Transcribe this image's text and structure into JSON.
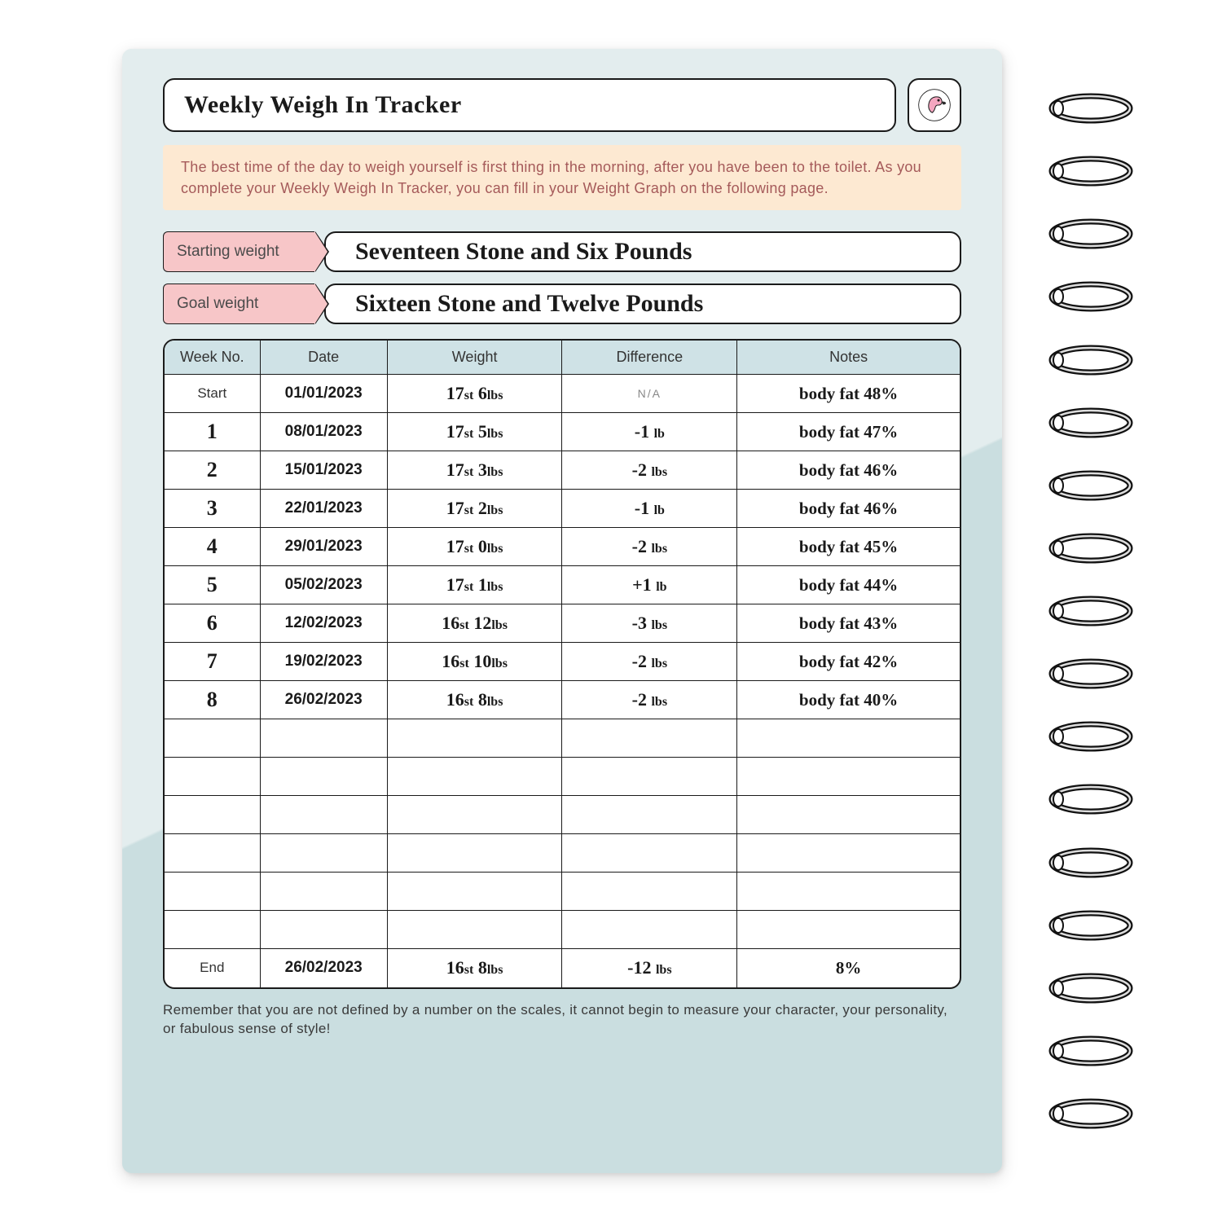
{
  "title": "Weekly Weigh In Tracker",
  "info_text": "The best time of the day to weigh yourself is first thing in the morning, after you have been to the toilet. As you complete your Weekly Weigh In Tracker, you can fill in your Weight Graph on the following page.",
  "starting_weight": {
    "label": "Starting weight",
    "value": "Seventeen Stone and Six Pounds"
  },
  "goal_weight": {
    "label": "Goal weight",
    "value": "Sixteen Stone and Twelve Pounds"
  },
  "columns": [
    "Week No.",
    "Date",
    "Weight",
    "Difference",
    "Notes"
  ],
  "rows": [
    {
      "week": "Start",
      "week_kind": "label",
      "date": "01/01/2023",
      "weight_st": "17",
      "weight_lbs": "6",
      "diff": "N/A",
      "diff_kind": "na",
      "notes": "body fat 48%"
    },
    {
      "week": "1",
      "week_kind": "num",
      "date": "08/01/2023",
      "weight_st": "17",
      "weight_lbs": "5",
      "diff": "-1",
      "diff_unit": "lb",
      "notes": "body fat 47%"
    },
    {
      "week": "2",
      "week_kind": "num",
      "date": "15/01/2023",
      "weight_st": "17",
      "weight_lbs": "3",
      "diff": "-2",
      "diff_unit": "lbs",
      "notes": "body fat 46%"
    },
    {
      "week": "3",
      "week_kind": "num",
      "date": "22/01/2023",
      "weight_st": "17",
      "weight_lbs": "2",
      "diff": "-1",
      "diff_unit": "lb",
      "notes": "body fat 46%"
    },
    {
      "week": "4",
      "week_kind": "num",
      "date": "29/01/2023",
      "weight_st": "17",
      "weight_lbs": "0",
      "diff": "-2",
      "diff_unit": "lbs",
      "notes": "body fat 45%"
    },
    {
      "week": "5",
      "week_kind": "num",
      "date": "05/02/2023",
      "weight_st": "17",
      "weight_lbs": "1",
      "diff": "+1",
      "diff_unit": "lb",
      "notes": "body fat 44%"
    },
    {
      "week": "6",
      "week_kind": "num",
      "date": "12/02/2023",
      "weight_st": "16",
      "weight_lbs": "12",
      "diff": "-3",
      "diff_unit": "lbs",
      "notes": "body fat 43%"
    },
    {
      "week": "7",
      "week_kind": "num",
      "date": "19/02/2023",
      "weight_st": "16",
      "weight_lbs": "10",
      "diff": "-2",
      "diff_unit": "lbs",
      "notes": "body fat 42%"
    },
    {
      "week": "8",
      "week_kind": "num",
      "date": "26/02/2023",
      "weight_st": "16",
      "weight_lbs": "8",
      "diff": "-2",
      "diff_unit": "lbs",
      "notes": "body fat 40%"
    },
    {
      "blank": true
    },
    {
      "blank": true
    },
    {
      "blank": true
    },
    {
      "blank": true
    },
    {
      "blank": true
    },
    {
      "blank": true
    },
    {
      "week": "End",
      "week_kind": "label",
      "date": "26/02/2023",
      "weight_st": "16",
      "weight_lbs": "8",
      "diff": "-12",
      "diff_unit": "lbs",
      "notes": "8%"
    }
  ],
  "footer_note": "Remember that you are not defined by a number on the scales, it cannot begin to measure your character, your personality, or fabulous sense of style!",
  "colors": {
    "page_bg_light": "#e3edee",
    "page_bg_dark": "#cadee0",
    "info_bg": "#fde9d2",
    "info_text": "#a55a5a",
    "label_bg": "#f7c6c8",
    "header_bg": "#cfe2e6",
    "border": "#1a1a1a",
    "flamingo_pink": "#f4a6c0",
    "flamingo_beak": "#2b2b2b"
  },
  "spiral_ring_count": 17
}
